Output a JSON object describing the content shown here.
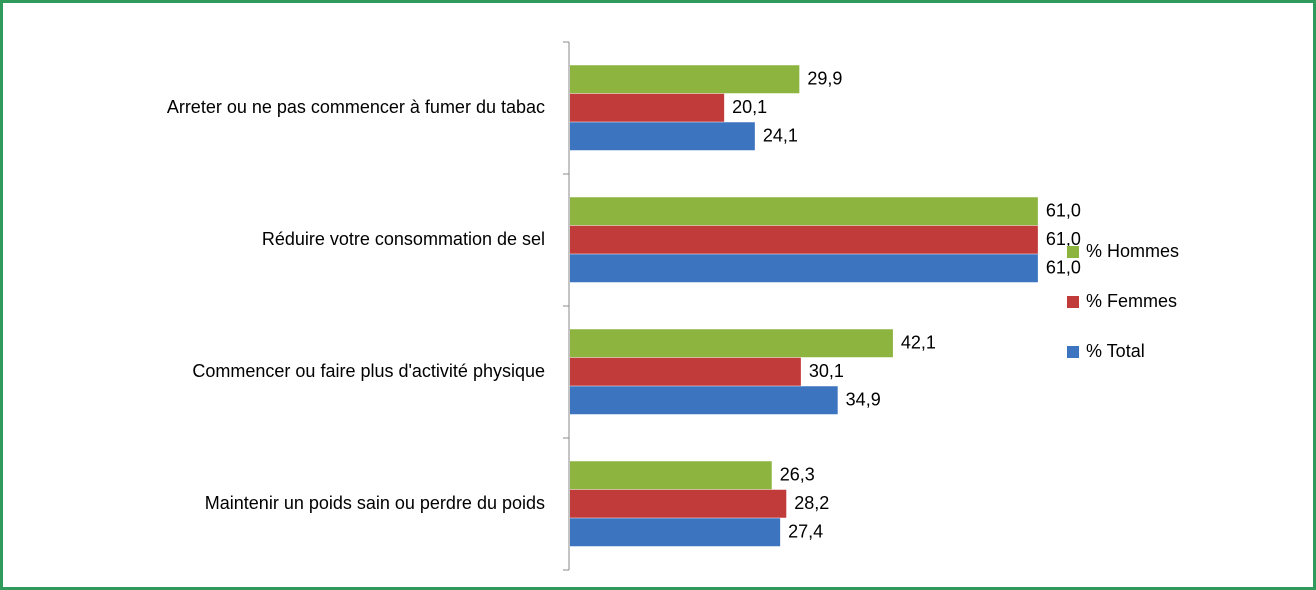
{
  "chart_data": {
    "type": "hbar",
    "categories": [
      "Arreter ou ne pas commencer à fumer du tabac",
      "Réduire votre consommation de sel",
      "Commencer ou faire plus d'activité physique",
      "Maintenir un poids sain ou perdre du poids"
    ],
    "series": [
      {
        "name": "% Hommes",
        "color": "#8cb43f",
        "values": [
          29.9,
          61.0,
          42.1,
          26.3
        ],
        "value_labels": [
          "29,9",
          "61,0",
          "42,1",
          "26,3"
        ]
      },
      {
        "name": "% Femmes",
        "color": "#c23b3b",
        "values": [
          20.1,
          61.0,
          30.1,
          28.2
        ],
        "value_labels": [
          "20,1",
          "61,0",
          "30,1",
          "28,2"
        ]
      },
      {
        "name": "% Total",
        "color": "#3d74bf",
        "values": [
          24.1,
          61.0,
          34.9,
          27.4
        ],
        "value_labels": [
          "24,1",
          "61,0",
          "34,9",
          "27,4"
        ]
      }
    ],
    "xlim": [
      0,
      70
    ],
    "legend": "right"
  }
}
